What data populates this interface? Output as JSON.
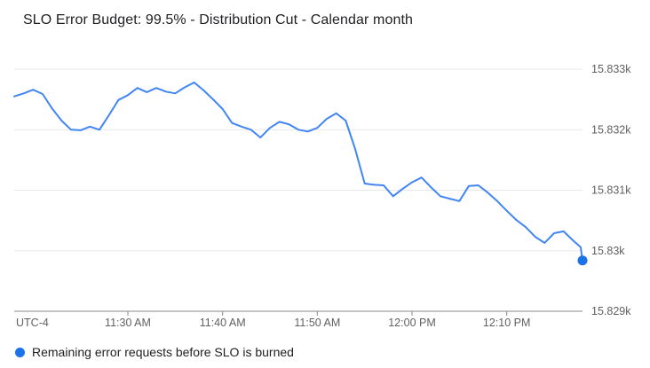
{
  "chart_data": {
    "type": "line",
    "title": "SLO Error Budget: 99.5% - Distribution Cut - Calendar month",
    "utc_label": "UTC-4",
    "xlabel": "",
    "ylabel": "",
    "xlim": [
      0,
      60
    ],
    "ylim": [
      15829,
      15833
    ],
    "grid": "horizontal-only",
    "legend_position": "bottom-left",
    "x_axis_note": "x values are minutes; tick labels show local clock time",
    "x_ticks": [
      {
        "m": 12,
        "label": "11:30 AM"
      },
      {
        "m": 22,
        "label": "11:40 AM"
      },
      {
        "m": 32,
        "label": "11:50 AM"
      },
      {
        "m": 42,
        "label": "12:00 PM"
      },
      {
        "m": 52,
        "label": "12:10 PM"
      }
    ],
    "y_ticks": [
      {
        "v": 15829,
        "label": "15.829k"
      },
      {
        "v": 15830,
        "label": "15.83k"
      },
      {
        "v": 15831,
        "label": "15.831k"
      },
      {
        "v": 15832,
        "label": "15.832k"
      },
      {
        "v": 15833,
        "label": "15.833k"
      }
    ],
    "colors": {
      "grid": "#e8e8e8",
      "axis": "#888888",
      "tick_text": "#616161",
      "title_text": "#202124",
      "legend_text": "#202124"
    },
    "series": [
      {
        "name": "Remaining error requests before SLO is burned",
        "color": "#4285f4",
        "marker_color": "#1a73e8",
        "end_marker": true,
        "points": [
          [
            0,
            15832.55
          ],
          [
            1,
            15832.6
          ],
          [
            2,
            15832.66
          ],
          [
            3,
            15832.59
          ],
          [
            4,
            15832.35
          ],
          [
            5,
            15832.15
          ],
          [
            6,
            15832.0
          ],
          [
            7,
            15831.99
          ],
          [
            8,
            15832.05
          ],
          [
            9,
            15832.0
          ],
          [
            10,
            15832.24
          ],
          [
            11,
            15832.49
          ],
          [
            12,
            15832.57
          ],
          [
            13,
            15832.69
          ],
          [
            14,
            15832.62
          ],
          [
            15,
            15832.69
          ],
          [
            16,
            15832.63
          ],
          [
            17,
            15832.6
          ],
          [
            18,
            15832.7
          ],
          [
            19,
            15832.78
          ],
          [
            20,
            15832.65
          ],
          [
            21,
            15832.5
          ],
          [
            22,
            15832.34
          ],
          [
            23,
            15832.11
          ],
          [
            24,
            15832.05
          ],
          [
            25,
            15832.0
          ],
          [
            26,
            15831.87
          ],
          [
            27,
            15832.03
          ],
          [
            28,
            15832.13
          ],
          [
            29,
            15832.09
          ],
          [
            30,
            15832.0
          ],
          [
            31,
            15831.97
          ],
          [
            32,
            15832.03
          ],
          [
            33,
            15832.18
          ],
          [
            34,
            15832.27
          ],
          [
            35,
            15832.15
          ],
          [
            36,
            15831.68
          ],
          [
            37,
            15831.11
          ],
          [
            38,
            15831.09
          ],
          [
            39,
            15831.08
          ],
          [
            40,
            15830.9
          ],
          [
            41,
            15831.02
          ],
          [
            42,
            15831.13
          ],
          [
            43,
            15831.21
          ],
          [
            44,
            15831.05
          ],
          [
            45,
            15830.9
          ],
          [
            46,
            15830.86
          ],
          [
            47,
            15830.82
          ],
          [
            48,
            15831.07
          ],
          [
            49,
            15831.08
          ],
          [
            50,
            15830.96
          ],
          [
            51,
            15830.82
          ],
          [
            52,
            15830.66
          ],
          [
            53,
            15830.51
          ],
          [
            54,
            15830.39
          ],
          [
            55,
            15830.23
          ],
          [
            56,
            15830.13
          ],
          [
            57,
            15830.29
          ],
          [
            58,
            15830.32
          ],
          [
            59,
            15830.17
          ],
          [
            59.8,
            15830.06
          ],
          [
            60,
            15829.84
          ]
        ]
      }
    ]
  }
}
